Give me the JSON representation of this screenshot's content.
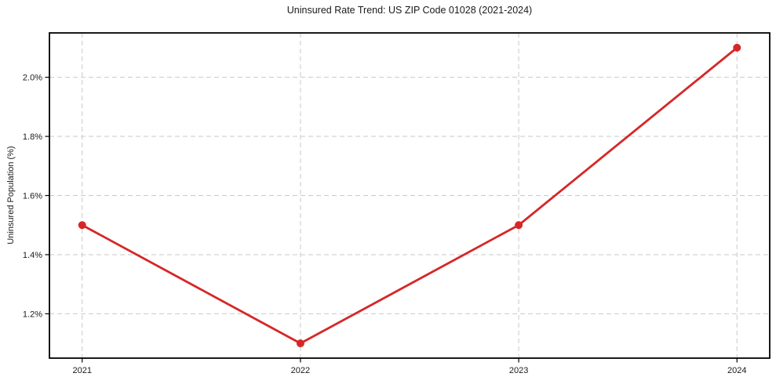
{
  "chart_data": {
    "type": "line",
    "title": "Uninsured Rate Trend: US ZIP Code 01028 (2021-2024)",
    "xlabel": "",
    "ylabel": "Uninsured Population (%)",
    "x": [
      2021,
      2022,
      2023,
      2024
    ],
    "series": [
      {
        "name": "Uninsured rate",
        "values": [
          1.5,
          1.1,
          1.5,
          2.1
        ]
      }
    ],
    "x_tick_labels": [
      "2021",
      "2022",
      "2023",
      "2024"
    ],
    "y_ticks": [
      1.2,
      1.4,
      1.6,
      1.8,
      2.0
    ],
    "y_tick_labels": [
      "1.2%",
      "1.4%",
      "1.6%",
      "1.8%",
      "2.0%"
    ],
    "xlim": [
      2020.85,
      2024.15
    ],
    "ylim": [
      1.05,
      2.15
    ],
    "grid": true,
    "grid_style": "dashed",
    "legend_position": "none",
    "marker": "circle",
    "colors": {
      "line": "#d62728",
      "marker": "#d62728",
      "grid": "#c9c9c9",
      "spine": "#000000",
      "text": "#1a1a1a",
      "background": "#ffffff"
    }
  }
}
